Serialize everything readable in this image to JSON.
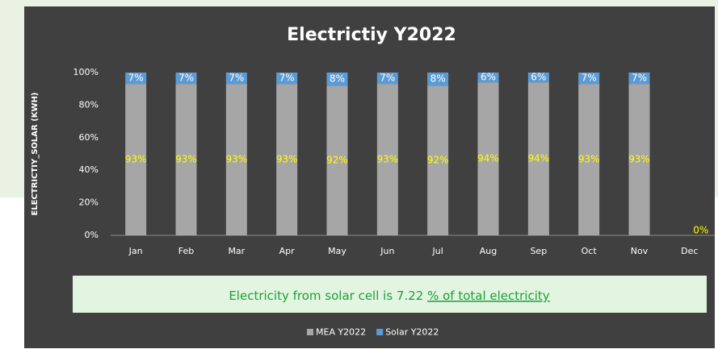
{
  "chart_data": {
    "type": "stacked_bar",
    "title": "Electrictiy Y2022",
    "y_label": "ELECTRICTIY_SOLAR (KWH)",
    "categories": [
      "Jan",
      "Feb",
      "Mar",
      "Apr",
      "May",
      "Jun",
      "Jul",
      "Aug",
      "Sep",
      "Oct",
      "Nov",
      "Dec"
    ],
    "series": [
      {
        "name": "MEA Y2022",
        "color": "#a6a6a6",
        "label_color": "#ffff00",
        "values": [
          93,
          93,
          93,
          93,
          92,
          93,
          92,
          94,
          94,
          93,
          93,
          0
        ],
        "value_labels": [
          "93%",
          "93%",
          "93%",
          "93%",
          "92%",
          "93%",
          "92%",
          "94%",
          "94%",
          "93%",
          "93%",
          "0%"
        ]
      },
      {
        "name": "Solar Y2022",
        "color": "#5b9bd5",
        "label_color": "#ffffff",
        "values": [
          7,
          7,
          7,
          7,
          8,
          7,
          8,
          6,
          6,
          7,
          7,
          0
        ],
        "value_labels": [
          "7%",
          "7%",
          "7%",
          "7%",
          "8%",
          "7%",
          "8%",
          "6%",
          "6%",
          "7%",
          "7%",
          null
        ]
      }
    ],
    "ylim": [
      0,
      100
    ],
    "yticks": [
      {
        "value": 0,
        "label": "0%"
      },
      {
        "value": 20,
        "label": "20%"
      },
      {
        "value": 40,
        "label": "40%"
      },
      {
        "value": 60,
        "label": "60%"
      },
      {
        "value": 80,
        "label": "80%"
      },
      {
        "value": 100,
        "label": "100%"
      }
    ],
    "grid": false,
    "legend": "bottom",
    "annotation": {
      "text": "Electricity from solar cell is 7.22",
      "link": "% of total electricity"
    }
  }
}
